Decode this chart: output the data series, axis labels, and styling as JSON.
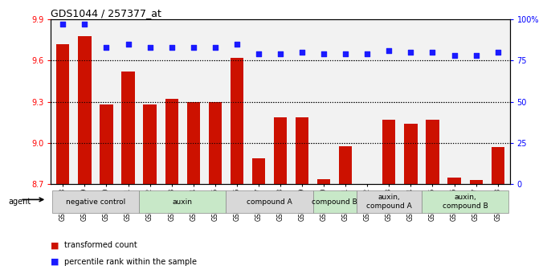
{
  "title": "GDS1044 / 257377_at",
  "samples": [
    "GSM25858",
    "GSM25859",
    "GSM25860",
    "GSM25861",
    "GSM25862",
    "GSM25863",
    "GSM25864",
    "GSM25865",
    "GSM25866",
    "GSM25867",
    "GSM25868",
    "GSM25869",
    "GSM25870",
    "GSM25871",
    "GSM25872",
    "GSM25873",
    "GSM25874",
    "GSM25875",
    "GSM25876",
    "GSM25877",
    "GSM25878"
  ],
  "bar_values": [
    9.72,
    9.78,
    9.28,
    9.52,
    9.28,
    9.32,
    9.3,
    9.3,
    9.62,
    8.89,
    9.19,
    9.19,
    8.74,
    8.98,
    8.69,
    9.17,
    9.14,
    9.17,
    8.75,
    8.73,
    8.97
  ],
  "percentile_values": [
    97,
    97,
    83,
    85,
    83,
    83,
    83,
    83,
    85,
    79,
    79,
    80,
    79,
    79,
    79,
    81,
    80,
    80,
    78,
    78,
    80
  ],
  "ylim_left": [
    8.7,
    9.9
  ],
  "ylim_right": [
    0,
    100
  ],
  "yticks_left": [
    8.7,
    9.0,
    9.3,
    9.6,
    9.9
  ],
  "yticks_right": [
    0,
    25,
    50,
    75,
    100
  ],
  "bar_color": "#cc1100",
  "dot_color": "#1a1aff",
  "bg_plot": "#f2f2f2",
  "groups": [
    {
      "label": "negative control",
      "start": 0,
      "end": 4,
      "color": "#d8d8d8"
    },
    {
      "label": "auxin",
      "start": 4,
      "end": 8,
      "color": "#c8e8c8"
    },
    {
      "label": "compound A",
      "start": 8,
      "end": 12,
      "color": "#d8d8d8"
    },
    {
      "label": "compound B",
      "start": 12,
      "end": 14,
      "color": "#c8e8c8"
    },
    {
      "label": "auxin,\ncompound A",
      "start": 14,
      "end": 17,
      "color": "#d8d8d8"
    },
    {
      "label": "auxin,\ncompound B",
      "start": 17,
      "end": 21,
      "color": "#c8e8c8"
    }
  ],
  "legend_red": "transformed count",
  "legend_blue": "percentile rank within the sample",
  "agent_label": "agent"
}
